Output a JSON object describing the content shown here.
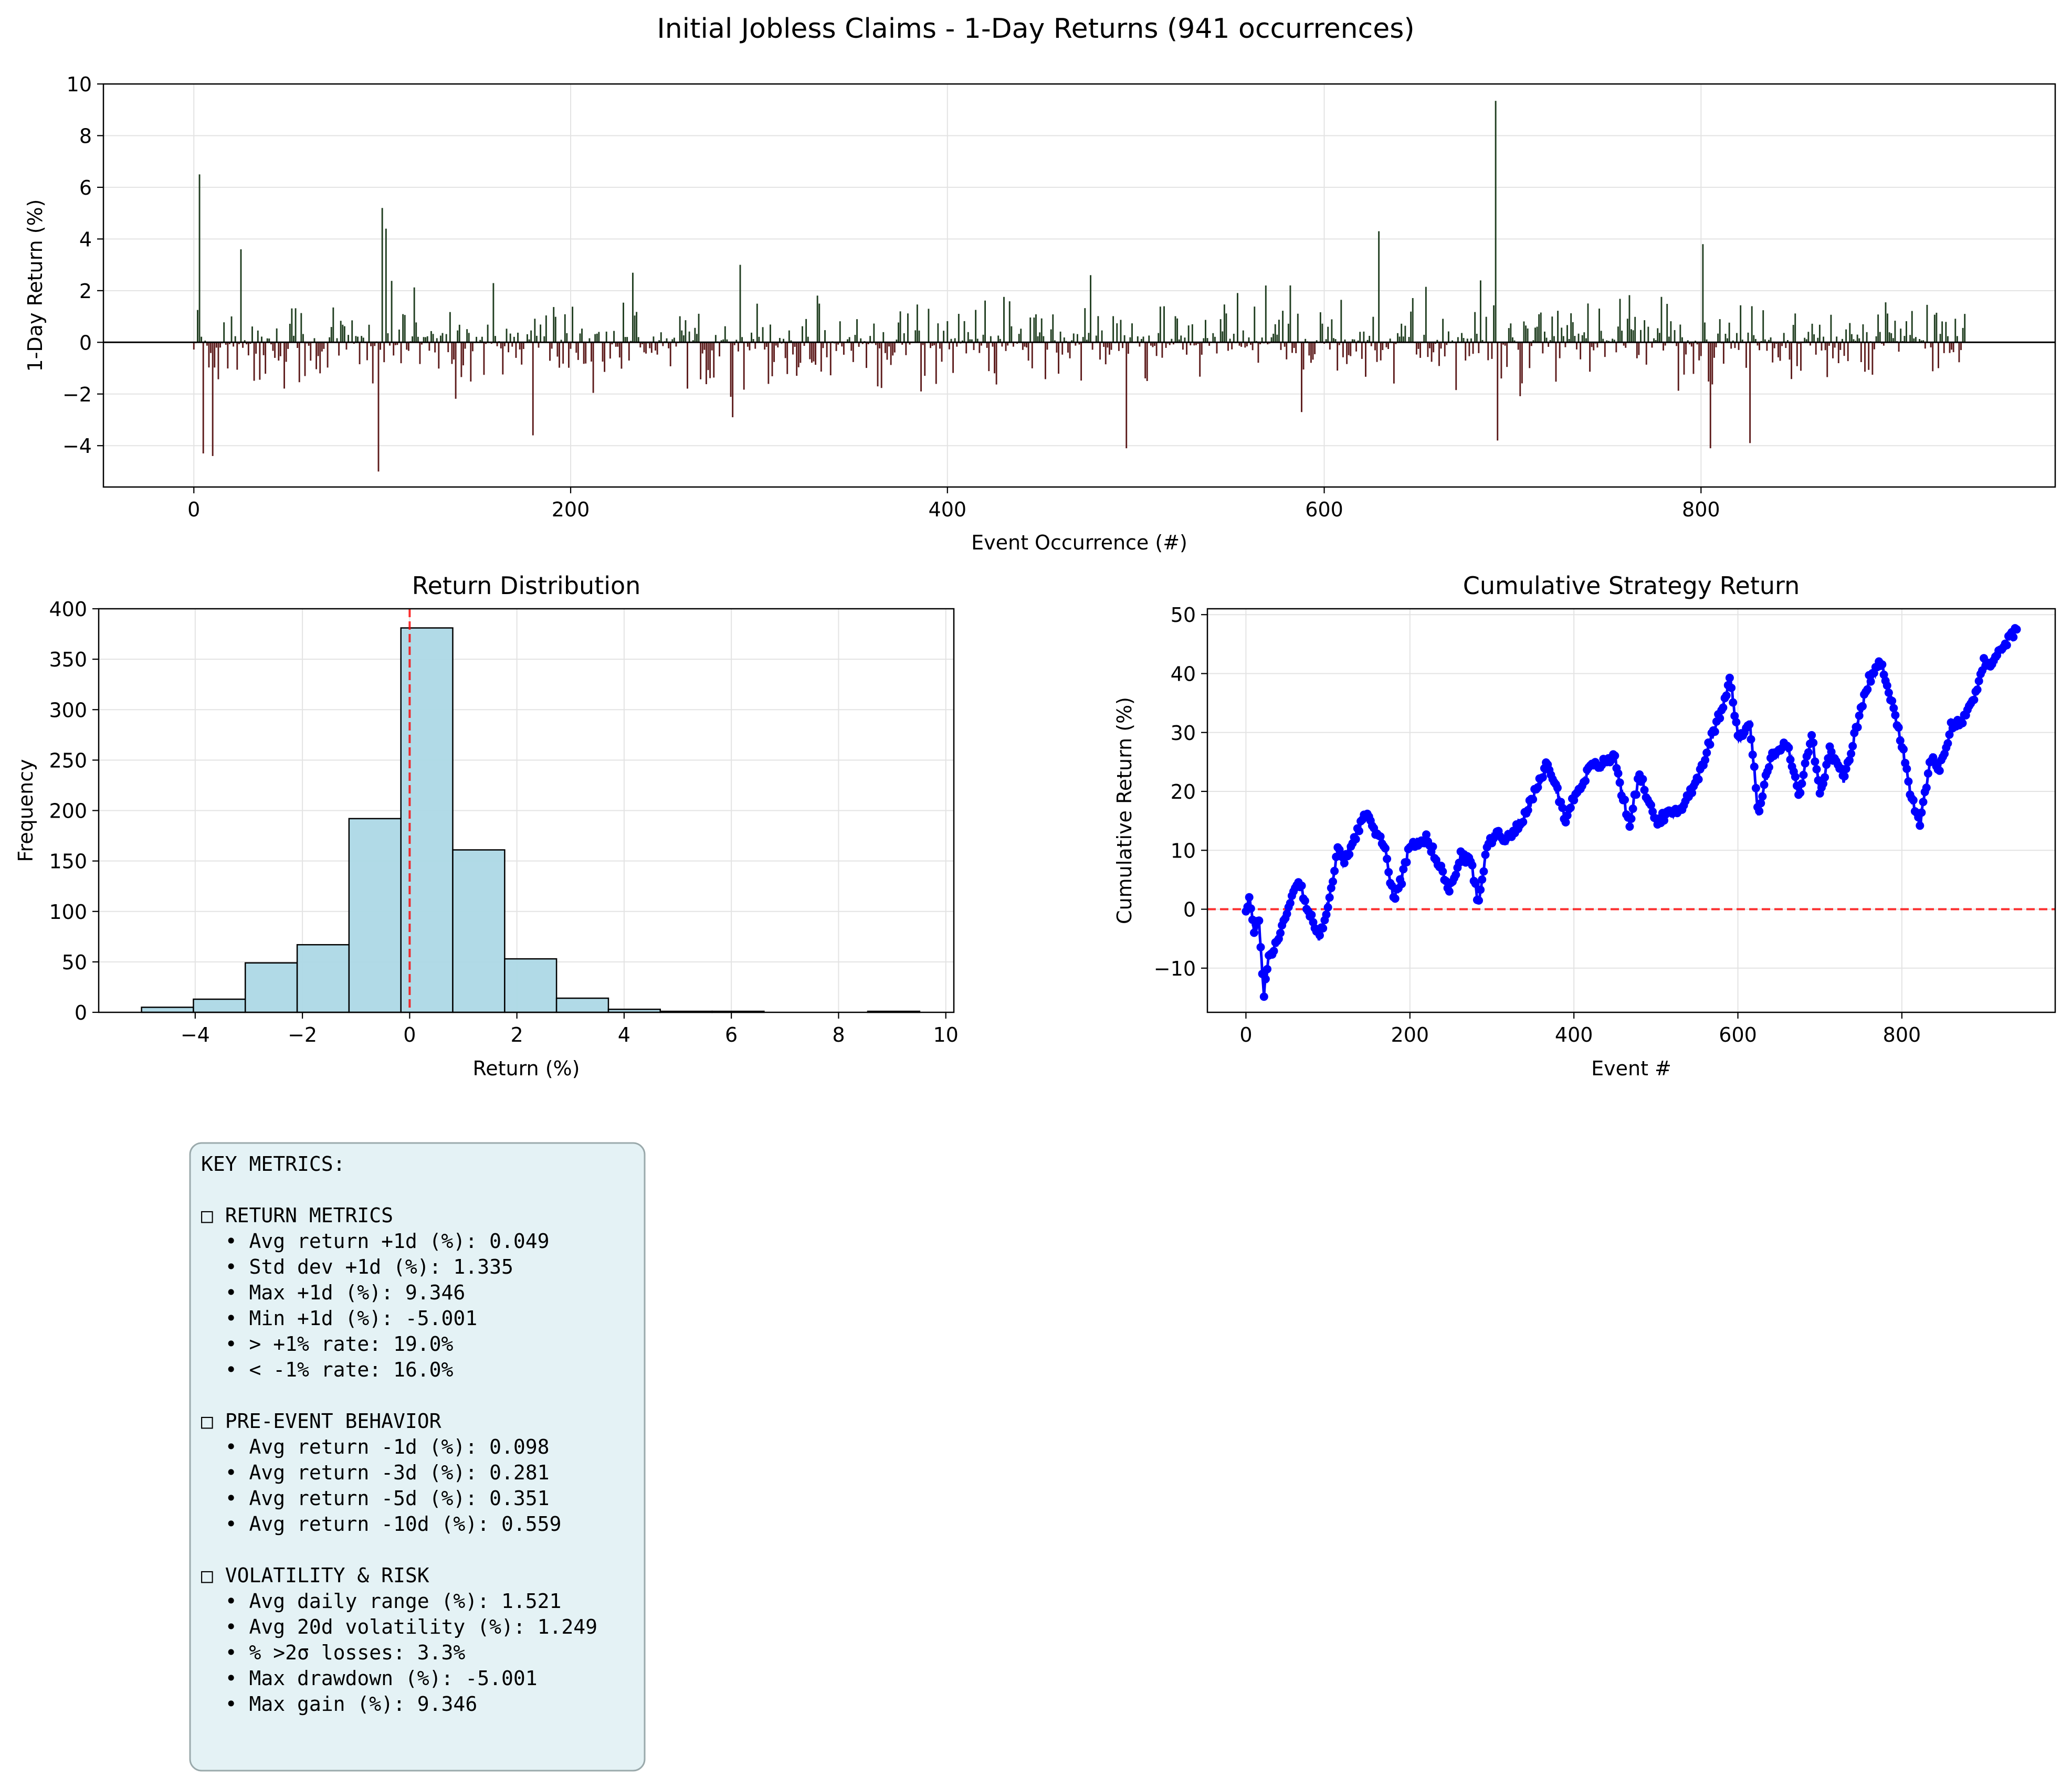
{
  "figure": {
    "suptitle": "Initial Jobless Claims - 1-Day Returns (941 occurrences)"
  },
  "chart_data": [
    {
      "type": "bar",
      "xlabel": "Event Occurrence (#)",
      "ylabel": "1-Day Return (%)",
      "xlim": [
        -48,
        988
      ],
      "ylim": [
        -5.6,
        10.0
      ],
      "xticks": [
        0,
        200,
        400,
        600,
        800
      ],
      "yticks": [
        -4,
        -2,
        0,
        2,
        4,
        6,
        8,
        10
      ],
      "grid": true,
      "n_points": 941,
      "positive_color": "#1f3d1f",
      "negative_color": "#5c1a1a",
      "notable_values": [
        {
          "x": 3,
          "y": 6.5
        },
        {
          "x": 5,
          "y": -4.3
        },
        {
          "x": 10,
          "y": -4.4
        },
        {
          "x": 25,
          "y": 3.6
        },
        {
          "x": 100,
          "y": 5.2
        },
        {
          "x": 102,
          "y": 4.4
        },
        {
          "x": 98,
          "y": -5.0
        },
        {
          "x": 180,
          "y": -3.6
        },
        {
          "x": 290,
          "y": 3.0
        },
        {
          "x": 286,
          "y": -2.9
        },
        {
          "x": 476,
          "y": 2.6
        },
        {
          "x": 495,
          "y": -4.1
        },
        {
          "x": 569,
          "y": 2.2
        },
        {
          "x": 588,
          "y": -2.7
        },
        {
          "x": 629,
          "y": 4.3
        },
        {
          "x": 691,
          "y": 9.346
        },
        {
          "x": 692,
          "y": -3.8
        },
        {
          "x": 801,
          "y": 3.8
        },
        {
          "x": 805,
          "y": -4.1
        },
        {
          "x": 826,
          "y": -3.9
        },
        {
          "x": 940,
          "y": 1.1
        }
      ],
      "summary": {
        "mean": 0.049,
        "std": 1.335,
        "max": 9.346,
        "min": -5.001
      }
    },
    {
      "type": "histogram",
      "title": "Return Distribution",
      "xlabel": "Return (%)",
      "ylabel": "Frequency",
      "xlim": [
        -5.8,
        10.15
      ],
      "ylim": [
        0,
        400
      ],
      "xticks": [
        -4,
        -2,
        0,
        2,
        4,
        6,
        8,
        10
      ],
      "yticks": [
        0,
        50,
        100,
        150,
        200,
        250,
        300,
        350,
        400
      ],
      "grid": true,
      "bar_color": "#add8e6",
      "bins": [
        {
          "start": -5.001,
          "end": -4.033,
          "count": 5
        },
        {
          "start": -4.033,
          "end": -3.066,
          "count": 13
        },
        {
          "start": -3.066,
          "end": -2.098,
          "count": 49
        },
        {
          "start": -2.098,
          "end": -1.131,
          "count": 67
        },
        {
          "start": -1.131,
          "end": -0.163,
          "count": 192
        },
        {
          "start": -0.163,
          "end": 0.804,
          "count": 381
        },
        {
          "start": 0.804,
          "end": 1.772,
          "count": 161
        },
        {
          "start": 1.772,
          "end": 2.739,
          "count": 53
        },
        {
          "start": 2.739,
          "end": 3.707,
          "count": 14
        },
        {
          "start": 3.707,
          "end": 4.674,
          "count": 3
        },
        {
          "start": 4.674,
          "end": 5.642,
          "count": 1
        },
        {
          "start": 5.642,
          "end": 6.609,
          "count": 1
        },
        {
          "start": 6.609,
          "end": 7.577,
          "count": 0
        },
        {
          "start": 7.577,
          "end": 8.544,
          "count": 0
        },
        {
          "start": 8.544,
          "end": 9.512,
          "count": 1
        }
      ],
      "reference_line": {
        "x": 0,
        "color": "#ff0000",
        "style": "dashed"
      }
    },
    {
      "type": "line",
      "title": "Cumulative Strategy Return",
      "xlabel": "Event #",
      "ylabel": "Cumulative Return (%)",
      "xlim": [
        -47,
        987
      ],
      "ylim": [
        -17.5,
        51
      ],
      "xticks": [
        0,
        200,
        400,
        600,
        800
      ],
      "yticks": [
        -10,
        0,
        10,
        20,
        30,
        40,
        50
      ],
      "grid": true,
      "line_color": "#0000ff",
      "marker": "circle",
      "reference_line": {
        "y": 0,
        "color": "#ff0000",
        "style": "dashed"
      },
      "keypoints": [
        {
          "x": 0,
          "y": 0
        },
        {
          "x": 4,
          "y": 2
        },
        {
          "x": 10,
          "y": -4
        },
        {
          "x": 16,
          "y": -2
        },
        {
          "x": 22,
          "y": -14.5
        },
        {
          "x": 28,
          "y": -8
        },
        {
          "x": 40,
          "y": -5
        },
        {
          "x": 55,
          "y": 2
        },
        {
          "x": 65,
          "y": 5
        },
        {
          "x": 75,
          "y": 0
        },
        {
          "x": 90,
          "y": -5
        },
        {
          "x": 105,
          "y": 4
        },
        {
          "x": 112,
          "y": 10
        },
        {
          "x": 120,
          "y": 8
        },
        {
          "x": 135,
          "y": 13
        },
        {
          "x": 145,
          "y": 16
        },
        {
          "x": 160,
          "y": 13
        },
        {
          "x": 170,
          "y": 10
        },
        {
          "x": 180,
          "y": 2
        },
        {
          "x": 190,
          "y": 5
        },
        {
          "x": 200,
          "y": 11
        },
        {
          "x": 220,
          "y": 12
        },
        {
          "x": 235,
          "y": 8
        },
        {
          "x": 248,
          "y": 3
        },
        {
          "x": 262,
          "y": 9
        },
        {
          "x": 275,
          "y": 8
        },
        {
          "x": 283,
          "y": 1
        },
        {
          "x": 295,
          "y": 11
        },
        {
          "x": 305,
          "y": 13
        },
        {
          "x": 320,
          "y": 12
        },
        {
          "x": 340,
          "y": 16
        },
        {
          "x": 360,
          "y": 22
        },
        {
          "x": 368,
          "y": 25
        },
        {
          "x": 380,
          "y": 20
        },
        {
          "x": 390,
          "y": 15
        },
        {
          "x": 400,
          "y": 19
        },
        {
          "x": 420,
          "y": 24
        },
        {
          "x": 440,
          "y": 25
        },
        {
          "x": 450,
          "y": 26
        },
        {
          "x": 458,
          "y": 20
        },
        {
          "x": 468,
          "y": 14.5
        },
        {
          "x": 480,
          "y": 23
        },
        {
          "x": 492,
          "y": 18
        },
        {
          "x": 500,
          "y": 15
        },
        {
          "x": 515,
          "y": 16
        },
        {
          "x": 530,
          "y": 17
        },
        {
          "x": 550,
          "y": 22
        },
        {
          "x": 570,
          "y": 30
        },
        {
          "x": 585,
          "y": 36
        },
        {
          "x": 590,
          "y": 40
        },
        {
          "x": 600,
          "y": 29
        },
        {
          "x": 615,
          "y": 31
        },
        {
          "x": 625,
          "y": 16
        },
        {
          "x": 640,
          "y": 26
        },
        {
          "x": 660,
          "y": 28
        },
        {
          "x": 675,
          "y": 19
        },
        {
          "x": 690,
          "y": 30
        },
        {
          "x": 700,
          "y": 19
        },
        {
          "x": 712,
          "y": 27
        },
        {
          "x": 730,
          "y": 22
        },
        {
          "x": 745,
          "y": 31
        },
        {
          "x": 760,
          "y": 39
        },
        {
          "x": 775,
          "y": 42
        },
        {
          "x": 790,
          "y": 34
        },
        {
          "x": 800,
          "y": 28
        },
        {
          "x": 810,
          "y": 20
        },
        {
          "x": 822,
          "y": 14
        },
        {
          "x": 835,
          "y": 26
        },
        {
          "x": 845,
          "y": 23
        },
        {
          "x": 860,
          "y": 31
        },
        {
          "x": 875,
          "y": 32
        },
        {
          "x": 890,
          "y": 37
        },
        {
          "x": 900,
          "y": 42
        },
        {
          "x": 910,
          "y": 41
        },
        {
          "x": 925,
          "y": 45
        },
        {
          "x": 940,
          "y": 47.5
        }
      ]
    }
  ],
  "metrics_box": {
    "lines": [
      "KEY METRICS:",
      "",
      "□ RETURN METRICS",
      "  • Avg return +1d (%): 0.049",
      "  • Std dev +1d (%): 1.335",
      "  • Max +1d (%): 9.346",
      "  • Min +1d (%): -5.001",
      "  • > +1% rate: 19.0%",
      "  • < -1% rate: 16.0%",
      "",
      "□ PRE-EVENT BEHAVIOR",
      "  • Avg return -1d (%): 0.098",
      "  • Avg return -3d (%): 0.281",
      "  • Avg return -5d (%): 0.351",
      "  • Avg return -10d (%): 0.559",
      "",
      "□ VOLATILITY & RISK",
      "  • Avg daily range (%): 1.521",
      "  • Avg 20d volatility (%): 1.249",
      "  • % >2σ losses: 3.3%",
      "  • Max drawdown (%): -5.001",
      "  • Max gain (%): 9.346"
    ],
    "background": "#e4f2f5",
    "border": "#9aa9ab"
  }
}
